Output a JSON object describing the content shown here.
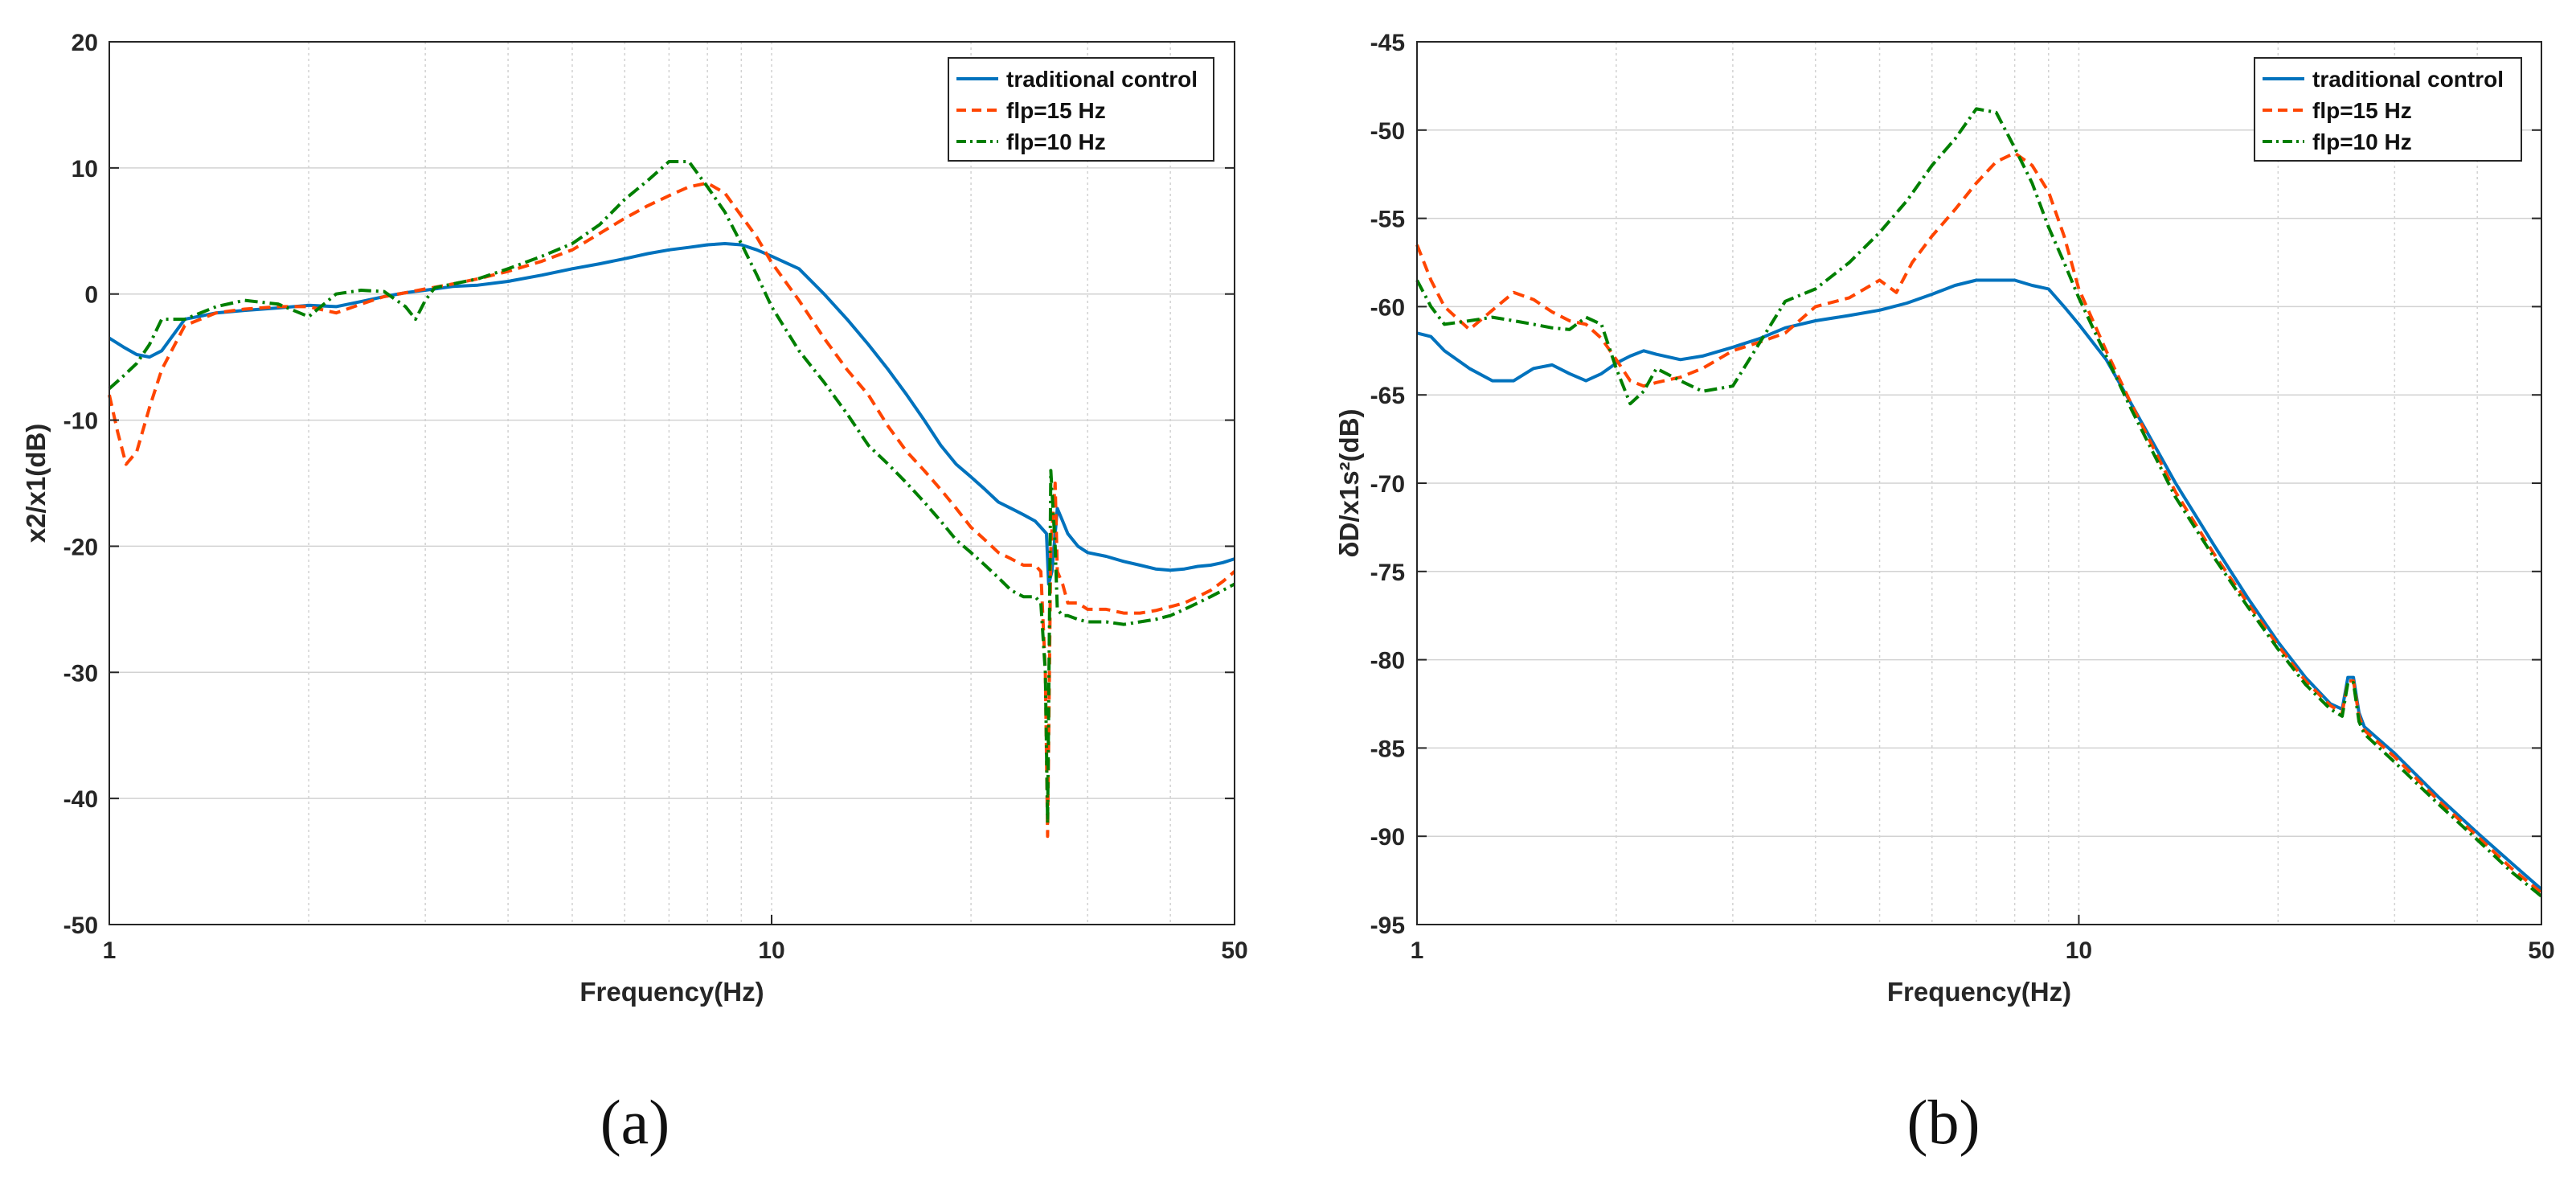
{
  "colors": {
    "traditional": "#0072BD",
    "flp15": "#FF4500",
    "flp10": "#007F00",
    "grid": "#d2d2d2",
    "axis": "#262626"
  },
  "chart_data": [
    {
      "type": "line",
      "panel_label": "(a)",
      "xlabel": "Frequency(Hz)",
      "ylabel": "x2/x1(dB)",
      "xscale": "log",
      "xlim": [
        1,
        50
      ],
      "ylim": [
        -50,
        20
      ],
      "xticks": [
        1,
        10,
        50
      ],
      "xtick_labels": [
        "1",
        "10",
        "50"
      ],
      "yticks": [
        20,
        10,
        0,
        -10,
        -20,
        -30,
        -40,
        -50
      ],
      "ytick_labels": [
        "20",
        "10",
        "0",
        "-10",
        "-20",
        "-30",
        "-40",
        "-50"
      ],
      "grid": true,
      "legend_position": "top-right",
      "series": [
        {
          "name": "traditional control",
          "style": "solid",
          "x": [
            1,
            1.05,
            1.1,
            1.15,
            1.2,
            1.3,
            1.45,
            1.6,
            1.8,
            2,
            2.2,
            2.4,
            2.6,
            2.8,
            3,
            3.3,
            3.6,
            4,
            4.5,
            5,
            5.5,
            6,
            6.5,
            7,
            7.5,
            8,
            8.5,
            9,
            9.5,
            10,
            11,
            12,
            13,
            14,
            15,
            16,
            17,
            18,
            19,
            20,
            21,
            22,
            23,
            24,
            25,
            25.5,
            26,
            26.2,
            26.5,
            27,
            27.5,
            28,
            29,
            30,
            32,
            34,
            36,
            38,
            40,
            42,
            44,
            46,
            48,
            50
          ],
          "y": [
            -3.5,
            -4.2,
            -4.8,
            -5,
            -4.5,
            -2,
            -1.5,
            -1.3,
            -1.1,
            -0.9,
            -1,
            -0.6,
            -0.2,
            0.1,
            0.3,
            0.6,
            0.7,
            1,
            1.5,
            2,
            2.4,
            2.8,
            3.2,
            3.5,
            3.7,
            3.9,
            4,
            3.9,
            3.5,
            3,
            2,
            0,
            -2,
            -4,
            -6,
            -8,
            -10,
            -12,
            -13.5,
            -14.5,
            -15.5,
            -16.5,
            -17,
            -17.5,
            -18,
            -18.5,
            -19,
            -23,
            -22,
            -17,
            -18,
            -19,
            -20,
            -20.5,
            -20.8,
            -21.2,
            -21.5,
            -21.8,
            -21.9,
            -21.8,
            -21.6,
            -21.5,
            -21.3,
            -21
          ]
        },
        {
          "name": "flp=15 Hz",
          "style": "dashed",
          "x": [
            1,
            1.03,
            1.06,
            1.1,
            1.15,
            1.2,
            1.3,
            1.45,
            1.6,
            1.8,
            2,
            2.2,
            2.4,
            2.6,
            2.8,
            3,
            3.3,
            3.6,
            4,
            4.5,
            5,
            5.5,
            6,
            6.5,
            7,
            7.5,
            8,
            8.5,
            9,
            9.5,
            10,
            11,
            12,
            13,
            14,
            15,
            16,
            17,
            18,
            19,
            20,
            21,
            22,
            23,
            24,
            25,
            25.5,
            25.9,
            26.1,
            26.4,
            26.8,
            27,
            27.5,
            28,
            29,
            30,
            32,
            34,
            36,
            38,
            40,
            42,
            44,
            46,
            48,
            50
          ],
          "y": [
            -8,
            -11,
            -13.5,
            -12.5,
            -9,
            -6,
            -2.5,
            -1.5,
            -1.2,
            -1,
            -1,
            -1.5,
            -0.8,
            -0.2,
            0.1,
            0.4,
            0.8,
            1.2,
            1.8,
            2.6,
            3.5,
            4.8,
            6,
            7,
            7.8,
            8.5,
            8.8,
            8,
            6.2,
            4.5,
            2.5,
            -0.5,
            -3.5,
            -6,
            -8,
            -10.5,
            -12.5,
            -14,
            -15.5,
            -17,
            -18.5,
            -19.5,
            -20.5,
            -21,
            -21.5,
            -21.5,
            -22,
            -30,
            -43,
            -20,
            -15,
            -22,
            -23,
            -24.5,
            -24.5,
            -25,
            -25,
            -25.3,
            -25.3,
            -25.1,
            -24.8,
            -24.5,
            -24,
            -23.5,
            -22.8,
            -22
          ]
        },
        {
          "name": "flp=10 Hz",
          "style": "dashdot",
          "x": [
            1,
            1.05,
            1.1,
            1.15,
            1.2,
            1.3,
            1.45,
            1.6,
            1.8,
            2,
            2.2,
            2.4,
            2.6,
            2.8,
            2.9,
            3,
            3.1,
            3.3,
            3.6,
            4,
            4.5,
            5,
            5.5,
            6,
            6.5,
            7,
            7.5,
            8,
            8.5,
            9,
            9.5,
            10,
            11,
            12,
            13,
            14,
            15,
            16,
            17,
            18,
            19,
            20,
            21,
            22,
            23,
            24,
            25,
            25.5,
            25.9,
            26.1,
            26.4,
            26.8,
            27,
            27.5,
            28,
            29,
            30,
            32,
            34,
            36,
            38,
            40,
            42,
            44,
            46,
            48,
            50
          ],
          "y": [
            -7.5,
            -6.5,
            -5.5,
            -4,
            -2,
            -2,
            -1,
            -0.5,
            -0.8,
            -1.8,
            0,
            0.3,
            0.2,
            -1,
            -2,
            -0.5,
            0.5,
            0.8,
            1.2,
            2,
            3,
            4,
            5.5,
            7.5,
            9,
            10.5,
            10.5,
            8.5,
            6.5,
            4,
            1.5,
            -1,
            -4.5,
            -7,
            -9.5,
            -12,
            -13.5,
            -15,
            -16.5,
            -18,
            -19.5,
            -20.5,
            -21.5,
            -22.5,
            -23.5,
            -24,
            -24,
            -24.5,
            -30,
            -42,
            -14,
            -20,
            -25,
            -25.5,
            -25.5,
            -25.8,
            -26,
            -26,
            -26.2,
            -26,
            -25.8,
            -25.5,
            -25,
            -24.5,
            -24,
            -23.5,
            -23
          ]
        }
      ]
    },
    {
      "type": "line",
      "panel_label": "(b)",
      "xlabel": "Frequency(Hz)",
      "ylabel": "δD/x1s²(dB)",
      "xscale": "log",
      "xlim": [
        1,
        50
      ],
      "ylim": [
        -95,
        -45
      ],
      "xticks": [
        1,
        10,
        50
      ],
      "xtick_labels": [
        "1",
        "10",
        "50"
      ],
      "yticks": [
        -45,
        -50,
        -55,
        -60,
        -65,
        -70,
        -75,
        -80,
        -85,
        -90,
        -95
      ],
      "ytick_labels": [
        "-45",
        "-50",
        "-55",
        "-60",
        "-65",
        "-70",
        "-75",
        "-80",
        "-85",
        "-90",
        "-95"
      ],
      "grid": true,
      "legend_position": "top-right",
      "series": [
        {
          "name": "traditional control",
          "style": "solid",
          "x": [
            1,
            1.05,
            1.1,
            1.2,
            1.3,
            1.4,
            1.5,
            1.6,
            1.7,
            1.8,
            1.9,
            2,
            2.1,
            2.2,
            2.3,
            2.5,
            2.7,
            3,
            3.3,
            3.6,
            4,
            4.5,
            5,
            5.5,
            6,
            6.5,
            7,
            7.5,
            8,
            8.5,
            9,
            9.5,
            10,
            11,
            12,
            14,
            16,
            18,
            20,
            22,
            24,
            25,
            25.5,
            26,
            26.5,
            27,
            30,
            35,
            40,
            45,
            50
          ],
          "y": [
            -61.5,
            -61.7,
            -62.5,
            -63.5,
            -64.2,
            -64.2,
            -63.5,
            -63.3,
            -63.8,
            -64.2,
            -63.8,
            -63.2,
            -62.8,
            -62.5,
            -62.7,
            -63,
            -62.8,
            -62.3,
            -61.8,
            -61.2,
            -60.8,
            -60.5,
            -60.2,
            -59.8,
            -59.3,
            -58.8,
            -58.5,
            -58.5,
            -58.5,
            -58.8,
            -59,
            -60,
            -61,
            -63,
            -65.5,
            -70,
            -73.5,
            -76.5,
            -79,
            -81,
            -82.5,
            -82.8,
            -81,
            -81,
            -83,
            -83.8,
            -85.3,
            -87.8,
            -89.8,
            -91.5,
            -93
          ]
        },
        {
          "name": "flp=15 Hz",
          "style": "dashed",
          "x": [
            1,
            1.05,
            1.1,
            1.2,
            1.3,
            1.4,
            1.5,
            1.6,
            1.7,
            1.8,
            1.9,
            2,
            2.1,
            2.2,
            2.3,
            2.5,
            2.7,
            3,
            3.3,
            3.6,
            4,
            4.5,
            5,
            5.3,
            5.6,
            6,
            6.5,
            7,
            7.5,
            8,
            8.5,
            9,
            9.5,
            10,
            11,
            12,
            14,
            16,
            18,
            20,
            22,
            24,
            25,
            25.5,
            26,
            26.5,
            27,
            30,
            35,
            40,
            45,
            50
          ],
          "y": [
            -56.5,
            -58.5,
            -60,
            -61.3,
            -60.2,
            -59.2,
            -59.6,
            -60.3,
            -60.8,
            -61,
            -61.8,
            -63,
            -64.2,
            -64.5,
            -64.3,
            -64,
            -63.5,
            -62.5,
            -62,
            -61.5,
            -60,
            -59.5,
            -58.5,
            -59.2,
            -57.5,
            -56,
            -54.5,
            -53,
            -51.8,
            -51.3,
            -52,
            -53.5,
            -56,
            -59,
            -62.5,
            -65.5,
            -70.5,
            -74,
            -76.8,
            -79.2,
            -81.2,
            -82.6,
            -83,
            -81.2,
            -81.2,
            -83.2,
            -84,
            -85.5,
            -88,
            -90,
            -91.8,
            -93.2
          ]
        },
        {
          "name": "flp=10 Hz",
          "style": "dashdot",
          "x": [
            1,
            1.05,
            1.1,
            1.2,
            1.3,
            1.4,
            1.5,
            1.6,
            1.7,
            1.8,
            1.9,
            2,
            2.1,
            2.2,
            2.3,
            2.5,
            2.7,
            3,
            3.3,
            3.6,
            4,
            4.5,
            5,
            5.5,
            6,
            6.5,
            7,
            7.5,
            8,
            8.5,
            9,
            9.5,
            10,
            11,
            12,
            14,
            16,
            18,
            20,
            22,
            24,
            25,
            25.5,
            26,
            26.5,
            27,
            30,
            35,
            40,
            45,
            50
          ],
          "y": [
            -58.5,
            -60,
            -61,
            -60.8,
            -60.6,
            -60.8,
            -61,
            -61.2,
            -61.3,
            -60.6,
            -61,
            -63.5,
            -65.5,
            -64.8,
            -63.5,
            -64.2,
            -64.8,
            -64.5,
            -62,
            -59.7,
            -59,
            -57.5,
            -55.8,
            -54,
            -52,
            -50.5,
            -48.8,
            -49,
            -51,
            -53,
            -55.5,
            -57.5,
            -59.5,
            -62.8,
            -65.8,
            -70.8,
            -74.2,
            -77,
            -79.4,
            -81.4,
            -82.8,
            -83.2,
            -81.3,
            -81.3,
            -83.5,
            -84.2,
            -85.8,
            -88.2,
            -90.2,
            -92,
            -93.4
          ]
        }
      ]
    }
  ]
}
